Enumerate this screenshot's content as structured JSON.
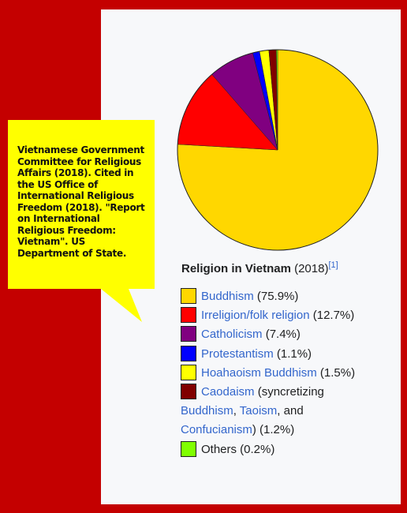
{
  "callout": {
    "text": "Vietnamese Government Committee for Religious Affairs (2018). Cited in the US Office of International Religious Freedom (2018). \"Report on International Religious Freedom: Vietnam\". US Department of State."
  },
  "caption": {
    "title": "Religion in Vietnam",
    "year": " (2018)",
    "ref": "[1]"
  },
  "legend": {
    "buddhism": "Buddhism",
    "buddhism_pct": " (75.9%)",
    "irreligion": "Irreligion/folk religion",
    "irreligion_pct": " (12.7%)",
    "catholicism": "Catholicism",
    "catholicism_pct": " (7.4%)",
    "protestantism": "Protestantism",
    "protestantism_pct": " (1.1%)",
    "hoahao": "Hoahaoism Buddhism",
    "hoahao_pct": " (1.5%)",
    "caodaism": "Caodaism",
    "caodaism_mid": " (syncretizing",
    "cao_buddhism": "Buddhism",
    "comma": ", ",
    "cao_taoism": "Taoism",
    "and": ", and",
    "cao_confucianism": "Confucianism",
    "caodaism_pct": ") (1.2%)",
    "others": "Others (0.2%)"
  },
  "colors": {
    "buddhism": "#ffd700",
    "irreligion": "#ff0000",
    "catholicism": "#800080",
    "protestantism": "#0000ff",
    "hoahao": "#ffff00",
    "caodaism": "#800000",
    "others": "#80ff00"
  },
  "chart_data": {
    "type": "pie",
    "slices": [
      {
        "label": "Buddhism",
        "value": 75.9,
        "color": "#ffd700"
      },
      {
        "label": "Irreligion/folk religion",
        "value": 12.7,
        "color": "#ff0000"
      },
      {
        "label": "Catholicism",
        "value": 7.4,
        "color": "#800080"
      },
      {
        "label": "Protestantism",
        "value": 1.1,
        "color": "#0000ff"
      },
      {
        "label": "Hoahaoism Buddhism",
        "value": 1.5,
        "color": "#ffff00"
      },
      {
        "label": "Caodaism",
        "value": 1.2,
        "color": "#800000"
      },
      {
        "label": "Others",
        "value": 0.2,
        "color": "#80ff00"
      }
    ]
  }
}
